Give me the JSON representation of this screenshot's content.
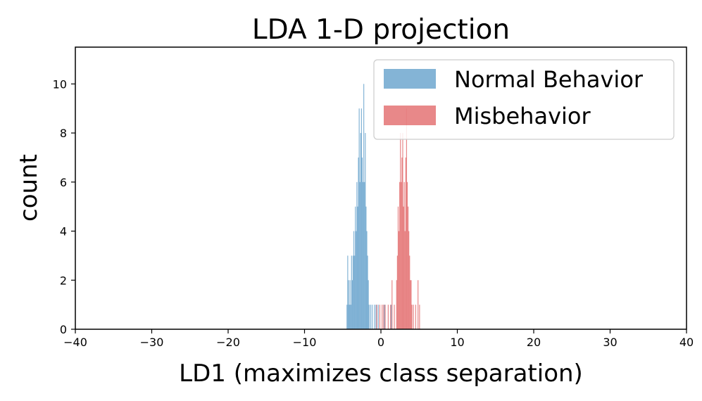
{
  "chart_data": {
    "type": "histogram",
    "title": "LDA 1-D projection",
    "xlabel": "LD1 (maximizes class separation)",
    "ylabel": "count",
    "xlim": [
      -40,
      40
    ],
    "ylim": [
      0,
      11.5
    ],
    "xticks": [
      -40,
      -30,
      -20,
      -10,
      0,
      10,
      20,
      30,
      40
    ],
    "xtick_labels": [
      "−40",
      "−30",
      "−20",
      "−10",
      "0",
      "10",
      "20",
      "30",
      "40"
    ],
    "yticks": [
      0,
      2,
      4,
      6,
      8,
      10
    ],
    "ytick_labels": [
      "0",
      "2",
      "4",
      "6",
      "8",
      "10"
    ],
    "grid": false,
    "legend_position": "top-right",
    "bin_width": 0.1,
    "series": [
      {
        "name": "Normal Behavior",
        "color": "#1f77b4",
        "alpha": 0.55,
        "bins": [
          [
            -4.5,
            1
          ],
          [
            -4.4,
            3
          ],
          [
            -4.3,
            2
          ],
          [
            -4.2,
            1
          ],
          [
            -4.1,
            2
          ],
          [
            -4.0,
            1
          ],
          [
            -3.9,
            3
          ],
          [
            -3.8,
            2
          ],
          [
            -3.7,
            3
          ],
          [
            -3.6,
            4
          ],
          [
            -3.5,
            3
          ],
          [
            -3.4,
            5
          ],
          [
            -3.3,
            4
          ],
          [
            -3.2,
            6
          ],
          [
            -3.1,
            5
          ],
          [
            -3.0,
            7
          ],
          [
            -2.9,
            9
          ],
          [
            -2.8,
            6
          ],
          [
            -2.7,
            8
          ],
          [
            -2.6,
            9
          ],
          [
            -2.5,
            7
          ],
          [
            -2.4,
            6
          ],
          [
            -2.3,
            10
          ],
          [
            -2.2,
            6
          ],
          [
            -2.1,
            8
          ],
          [
            -2.0,
            5
          ],
          [
            -1.9,
            4
          ],
          [
            -1.8,
            3
          ],
          [
            -1.7,
            2
          ],
          [
            -1.6,
            1
          ],
          [
            -1.4,
            1
          ],
          [
            -1.2,
            1
          ],
          [
            -0.9,
            1
          ],
          [
            -0.7,
            1
          ],
          [
            -0.4,
            1
          ],
          [
            0.4,
            1
          ],
          [
            1.3,
            1
          ]
        ]
      },
      {
        "name": "Misbehavior",
        "color": "#d62728",
        "alpha": 0.55,
        "bins": [
          [
            -0.6,
            1
          ],
          [
            -0.2,
            1
          ],
          [
            0.1,
            1
          ],
          [
            0.3,
            1
          ],
          [
            0.5,
            1
          ],
          [
            0.9,
            1
          ],
          [
            1.2,
            1
          ],
          [
            1.4,
            2
          ],
          [
            1.7,
            1
          ],
          [
            2.0,
            2
          ],
          [
            2.1,
            3
          ],
          [
            2.2,
            5
          ],
          [
            2.3,
            4
          ],
          [
            2.4,
            6
          ],
          [
            2.5,
            8
          ],
          [
            2.6,
            6
          ],
          [
            2.7,
            7
          ],
          [
            2.8,
            8
          ],
          [
            2.9,
            5
          ],
          [
            3.0,
            6
          ],
          [
            3.1,
            4
          ],
          [
            3.2,
            7
          ],
          [
            3.3,
            9
          ],
          [
            3.4,
            6
          ],
          [
            3.5,
            5
          ],
          [
            3.6,
            4
          ],
          [
            3.7,
            3
          ],
          [
            3.8,
            2
          ],
          [
            3.9,
            2
          ],
          [
            4.0,
            1
          ],
          [
            4.2,
            1
          ],
          [
            4.5,
            1
          ],
          [
            4.8,
            2
          ],
          [
            5.0,
            1
          ]
        ]
      }
    ]
  }
}
